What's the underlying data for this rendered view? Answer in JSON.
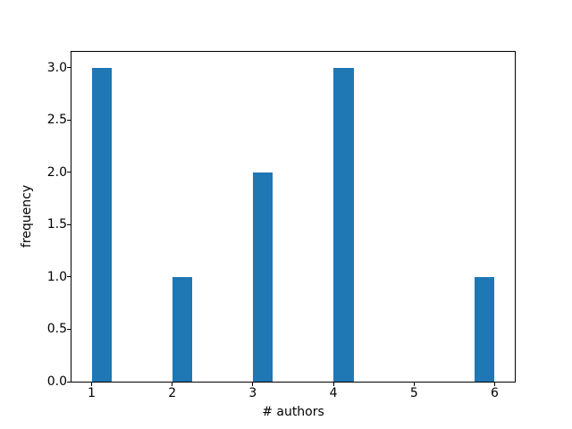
{
  "figure": {
    "background_color": "#ffffff",
    "spine_color": "#000000",
    "title": ""
  },
  "chart_data": {
    "type": "bar",
    "subtype": "histogram",
    "title": "",
    "xlabel": "# authors",
    "ylabel": "frequency",
    "bar_color": "#1f77b4",
    "bin_width": 0.25,
    "bars": [
      {
        "bin_left": 1.0,
        "frequency": 3
      },
      {
        "bin_left": 2.0,
        "frequency": 1
      },
      {
        "bin_left": 3.0,
        "frequency": 2
      },
      {
        "bin_left": 4.0,
        "frequency": 3
      },
      {
        "bin_left": 5.75,
        "frequency": 1
      }
    ],
    "frequencies_by_authors": {
      "1": 3,
      "2": 1,
      "3": 2,
      "4": 3,
      "5": 0,
      "6": 1
    },
    "xlim": [
      0.75,
      6.25
    ],
    "ylim": [
      0,
      3.15
    ],
    "x_ticks": [
      1,
      2,
      3,
      4,
      5,
      6
    ],
    "x_tick_labels": [
      "1",
      "2",
      "3",
      "4",
      "5",
      "6"
    ],
    "y_ticks": [
      0.0,
      0.5,
      1.0,
      1.5,
      2.0,
      2.5,
      3.0
    ],
    "y_tick_labels": [
      "0.0",
      "0.5",
      "1.0",
      "1.5",
      "2.0",
      "2.5",
      "3.0"
    ],
    "grid": false,
    "legend": null
  }
}
